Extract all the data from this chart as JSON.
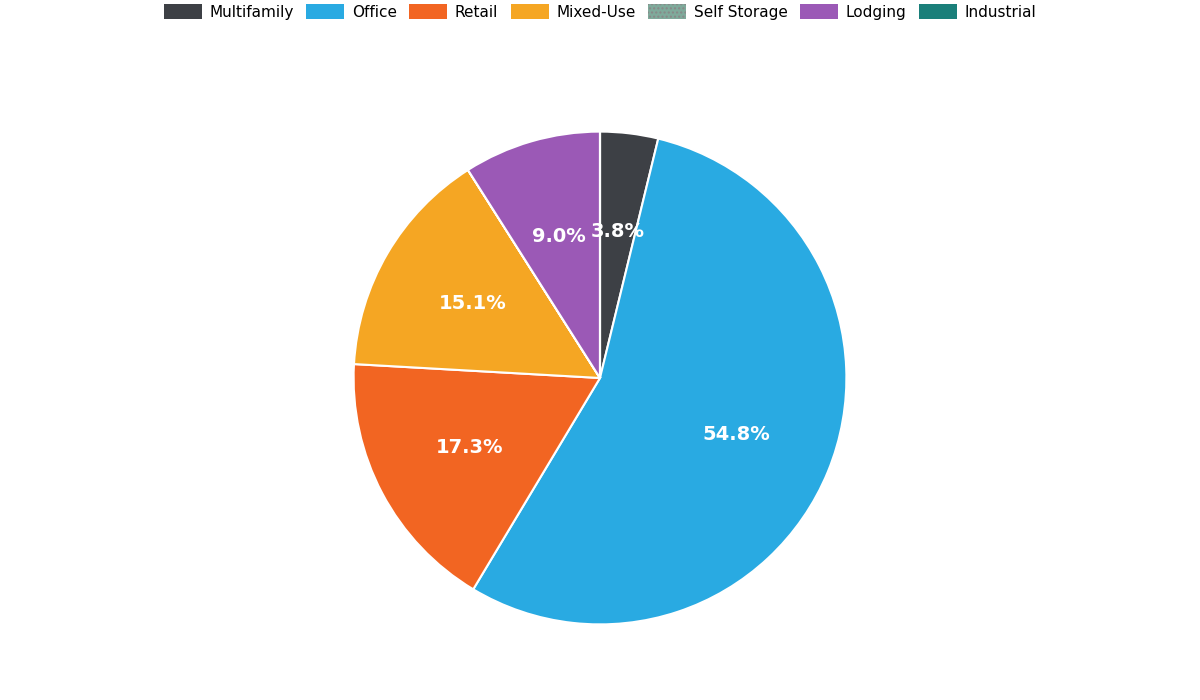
{
  "labels": [
    "Multifamily",
    "Office",
    "Retail",
    "Mixed-Use",
    "Self Storage",
    "Lodging",
    "Industrial"
  ],
  "values": [
    3.8,
    54.8,
    17.3,
    15.1,
    0.0,
    9.0,
    0.0
  ],
  "colors": [
    "#3d4045",
    "#29aae2",
    "#f26522",
    "#f5a623",
    "#7faa9b",
    "#9b59b6",
    "#1a7f7a"
  ],
  "legend_labels": [
    "Multifamily",
    "Office",
    "Retail",
    "Mixed-Use",
    "Self Storage",
    "Lodging",
    "Industrial"
  ],
  "pct_labels": [
    "3.8%",
    "54.8%",
    "17.3%",
    "15.1%",
    "",
    "9.0%",
    ""
  ],
  "startangle": 90,
  "label_color": "#ffffff",
  "label_fontsize": 14,
  "title_fontsize": 13,
  "background_color": "#ffffff"
}
